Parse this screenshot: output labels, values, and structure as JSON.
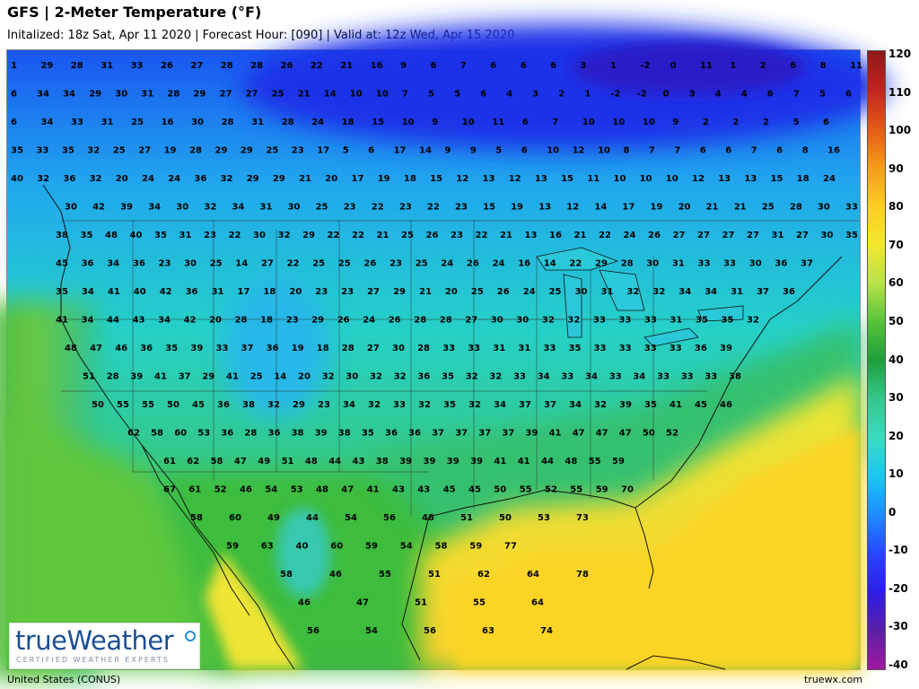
{
  "header": {
    "title": "GFS | 2-Meter Temperature (°F)",
    "subtitle": "Initalized: 18z Sat, Apr 11 2020 | Forecast Hour: [090] | Valid at: 12z Wed, Apr 15 2020"
  },
  "colorbar": {
    "ticks": [
      "120",
      "110",
      "100",
      "90",
      "80",
      "70",
      "60",
      "50",
      "40",
      "30",
      "20",
      "10",
      "0",
      "-10",
      "-20",
      "-30",
      "-40"
    ],
    "colors": [
      "#a0199e",
      "#5a1fa6",
      "#2d1ee6",
      "#2747ff",
      "#1f8cff",
      "#19c8f0",
      "#39dcc0",
      "#36c68a",
      "#1f9e3c",
      "#58c33a",
      "#b9e24a",
      "#f3e82e",
      "#fbcc22",
      "#f59b1c",
      "#e25a18",
      "#c0241e",
      "#8e1a1a"
    ]
  },
  "logo": {
    "main": "trueWeather",
    "tagline": "CERTIFIED WEATHER EXPERTS"
  },
  "footer": {
    "region": "United States (CONUS)",
    "site": "truewx.com"
  },
  "map": {
    "temperature_rows": [
      [
        1,
        29,
        28,
        31,
        33,
        26,
        27,
        28,
        28,
        26,
        22,
        21,
        16,
        9,
        6,
        7,
        6,
        6,
        6,
        3,
        1,
        -2,
        0,
        11,
        1,
        2,
        6,
        8,
        11
      ],
      [
        6,
        34,
        34,
        29,
        30,
        31,
        28,
        29,
        27,
        27,
        25,
        21,
        14,
        10,
        10,
        7,
        5,
        5,
        6,
        4,
        3,
        2,
        1,
        -2,
        -2,
        0,
        3,
        4,
        4,
        6,
        7,
        5,
        6
      ],
      [
        6,
        34,
        33,
        31,
        25,
        16,
        30,
        28,
        31,
        28,
        24,
        18,
        15,
        10,
        9,
        10,
        11,
        6,
        7,
        10,
        10,
        10,
        9,
        2,
        2,
        2,
        5,
        6
      ],
      [
        35,
        33,
        35,
        32,
        25,
        27,
        19,
        28,
        29,
        29,
        25,
        23,
        17,
        5,
        6,
        17,
        14,
        9,
        9,
        5,
        6,
        10,
        12,
        10,
        8,
        7,
        7,
        6,
        6,
        7,
        6,
        8,
        16
      ],
      [
        40,
        32,
        36,
        32,
        20,
        24,
        24,
        36,
        32,
        29,
        29,
        21,
        20,
        17,
        19,
        18,
        15,
        12,
        13,
        12,
        13,
        15,
        11,
        10,
        10,
        10,
        12,
        13,
        13,
        15,
        18,
        24
      ],
      [
        30,
        42,
        39,
        34,
        30,
        32,
        34,
        31,
        30,
        25,
        23,
        22,
        23,
        22,
        23,
        15,
        19,
        13,
        12,
        14,
        17,
        19,
        20,
        21,
        21,
        25,
        28,
        30,
        33
      ],
      [
        38,
        35,
        48,
        40,
        35,
        31,
        23,
        22,
        30,
        32,
        29,
        22,
        22,
        21,
        25,
        26,
        23,
        22,
        21,
        13,
        16,
        21,
        22,
        24,
        26,
        27,
        27,
        27,
        27,
        31,
        27,
        30,
        35
      ],
      [
        45,
        36,
        34,
        36,
        23,
        30,
        25,
        14,
        27,
        22,
        25,
        25,
        26,
        23,
        25,
        24,
        26,
        24,
        16,
        14,
        22,
        29,
        28,
        30,
        31,
        33,
        33,
        30,
        36,
        37
      ],
      [
        35,
        34,
        41,
        40,
        42,
        36,
        31,
        17,
        18,
        20,
        23,
        23,
        27,
        29,
        21,
        20,
        25,
        26,
        24,
        25,
        30,
        31,
        32,
        32,
        34,
        34,
        31,
        37,
        36
      ],
      [
        41,
        34,
        44,
        43,
        34,
        42,
        20,
        28,
        18,
        23,
        29,
        26,
        24,
        26,
        28,
        28,
        27,
        30,
        30,
        32,
        32,
        33,
        33,
        33,
        31,
        35,
        35,
        32
      ],
      [
        48,
        47,
        46,
        36,
        35,
        39,
        33,
        37,
        36,
        19,
        18,
        28,
        27,
        30,
        28,
        33,
        33,
        31,
        31,
        33,
        35,
        33,
        33,
        33,
        33,
        36,
        39
      ],
      [
        51,
        28,
        39,
        41,
        37,
        29,
        41,
        25,
        14,
        20,
        32,
        30,
        32,
        32,
        36,
        35,
        32,
        32,
        33,
        34,
        33,
        34,
        33,
        34,
        33,
        33,
        33,
        38
      ],
      [
        50,
        55,
        55,
        50,
        45,
        36,
        38,
        32,
        29,
        23,
        34,
        32,
        33,
        32,
        35,
        32,
        34,
        37,
        37,
        34,
        32,
        39,
        35,
        41,
        45,
        46
      ],
      [
        62,
        58,
        60,
        53,
        36,
        28,
        36,
        38,
        39,
        38,
        35,
        36,
        36,
        37,
        37,
        37,
        37,
        39,
        41,
        47,
        47,
        47,
        50,
        52
      ],
      [
        61,
        62,
        58,
        47,
        49,
        51,
        48,
        44,
        43,
        38,
        39,
        39,
        39,
        39,
        41,
        41,
        44,
        48,
        55,
        59
      ],
      [
        67,
        61,
        52,
        46,
        54,
        53,
        48,
        47,
        41,
        43,
        43,
        45,
        45,
        50,
        55,
        52,
        55,
        59,
        70
      ],
      [
        58,
        60,
        49,
        44,
        54,
        56,
        48,
        51,
        50,
        53,
        73
      ],
      [
        59,
        63,
        40,
        60,
        59,
        54,
        58,
        59,
        77
      ],
      [
        58,
        46,
        55,
        51,
        62,
        64,
        78
      ],
      [
        46,
        47,
        51,
        55,
        64
      ],
      [
        56,
        54,
        56,
        63,
        74
      ]
    ]
  }
}
